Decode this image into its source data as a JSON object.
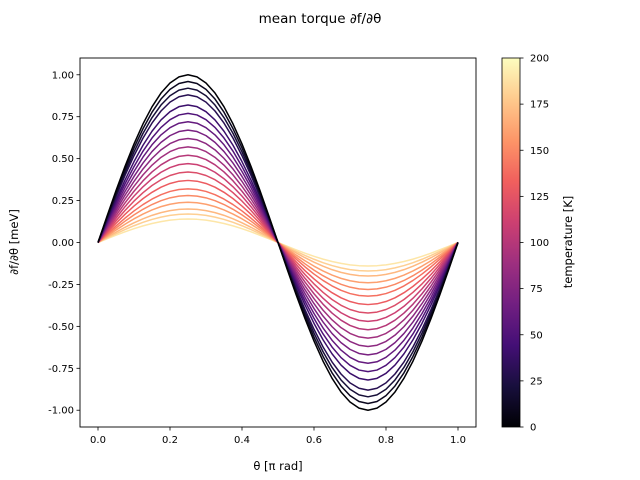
{
  "chart_data": {
    "type": "line",
    "title": "mean torque ∂f/∂θ",
    "xlabel": "θ [π rad]",
    "ylabel": "∂f/∂θ [meV]",
    "xlim": [
      -0.05,
      1.05
    ],
    "ylim": [
      -1.1,
      1.1
    ],
    "x_ticks": [
      0.0,
      0.2,
      0.4,
      0.6,
      0.8,
      1.0
    ],
    "y_ticks": [
      -1.0,
      -0.75,
      -0.5,
      -0.25,
      0.0,
      0.25,
      0.5,
      0.75,
      1.0
    ],
    "grid": false,
    "x_samples": [
      0,
      0.025,
      0.05,
      0.075,
      0.1,
      0.125,
      0.15,
      0.175,
      0.2,
      0.225,
      0.25,
      0.275,
      0.3,
      0.325,
      0.35,
      0.375,
      0.4,
      0.425,
      0.45,
      0.475,
      0.5,
      0.525,
      0.55,
      0.575,
      0.6,
      0.625,
      0.65,
      0.675,
      0.7,
      0.725,
      0.75,
      0.775,
      0.8,
      0.825,
      0.85,
      0.875,
      0.9,
      0.925,
      0.95,
      0.975,
      1.0
    ],
    "curve_shape": "A·sin(2πθ)",
    "series": [
      {
        "temperature": 0,
        "amplitude": 1.0
      },
      {
        "temperature": 10,
        "amplitude": 0.96
      },
      {
        "temperature": 20,
        "amplitude": 0.92
      },
      {
        "temperature": 30,
        "amplitude": 0.88
      },
      {
        "temperature": 40,
        "amplitude": 0.82
      },
      {
        "temperature": 50,
        "amplitude": 0.77
      },
      {
        "temperature": 60,
        "amplitude": 0.72
      },
      {
        "temperature": 70,
        "amplitude": 0.67
      },
      {
        "temperature": 80,
        "amplitude": 0.62
      },
      {
        "temperature": 90,
        "amplitude": 0.57
      },
      {
        "temperature": 100,
        "amplitude": 0.52
      },
      {
        "temperature": 110,
        "amplitude": 0.47
      },
      {
        "temperature": 120,
        "amplitude": 0.42
      },
      {
        "temperature": 130,
        "amplitude": 0.37
      },
      {
        "temperature": 140,
        "amplitude": 0.32
      },
      {
        "temperature": 150,
        "amplitude": 0.28
      },
      {
        "temperature": 160,
        "amplitude": 0.24
      },
      {
        "temperature": 170,
        "amplitude": 0.2
      },
      {
        "temperature": 180,
        "amplitude": 0.17
      },
      {
        "temperature": 190,
        "amplitude": 0.14
      }
    ],
    "colorbar": {
      "label": "temperature [K]",
      "range": [
        0,
        200
      ],
      "ticks": [
        0,
        25,
        50,
        75,
        100,
        125,
        150,
        175,
        200
      ],
      "colormap": "magma",
      "colormap_stops": [
        "#000004",
        "#180f3d",
        "#440f76",
        "#721f81",
        "#9e2f7f",
        "#cd4071",
        "#f1605d",
        "#fd9668",
        "#feca8d",
        "#fcfdbf"
      ]
    }
  }
}
